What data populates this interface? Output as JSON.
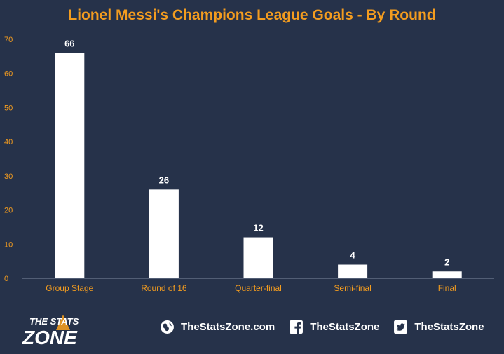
{
  "colors": {
    "background": "#26324a",
    "accent": "#f39c1f",
    "bar": "#ffffff",
    "axis_text": "#f39c1f"
  },
  "chart_data": {
    "type": "bar",
    "title": "Lionel Messi's Champions League Goals - By Round",
    "categories": [
      "Group Stage",
      "Round of 16",
      "Quarter-final",
      "Semi-final",
      "Final"
    ],
    "values": [
      66,
      26,
      12,
      4,
      2
    ],
    "data_labels": [
      "66",
      "26",
      "12",
      "4",
      "2"
    ],
    "ylim": [
      0,
      70
    ],
    "yticks": [
      0,
      10,
      20,
      30,
      40,
      50,
      60,
      70
    ],
    "xlabel": "",
    "ylabel": "",
    "grid": false,
    "legend": "none"
  },
  "footer": {
    "logo": {
      "line1": "THE STATS",
      "line2": "ZONE"
    },
    "links": [
      {
        "icon": "globe-icon",
        "label": "TheStatsZone.com"
      },
      {
        "icon": "facebook-icon",
        "label": "TheStatsZone"
      },
      {
        "icon": "twitter-icon",
        "label": "TheStatsZone"
      }
    ]
  }
}
